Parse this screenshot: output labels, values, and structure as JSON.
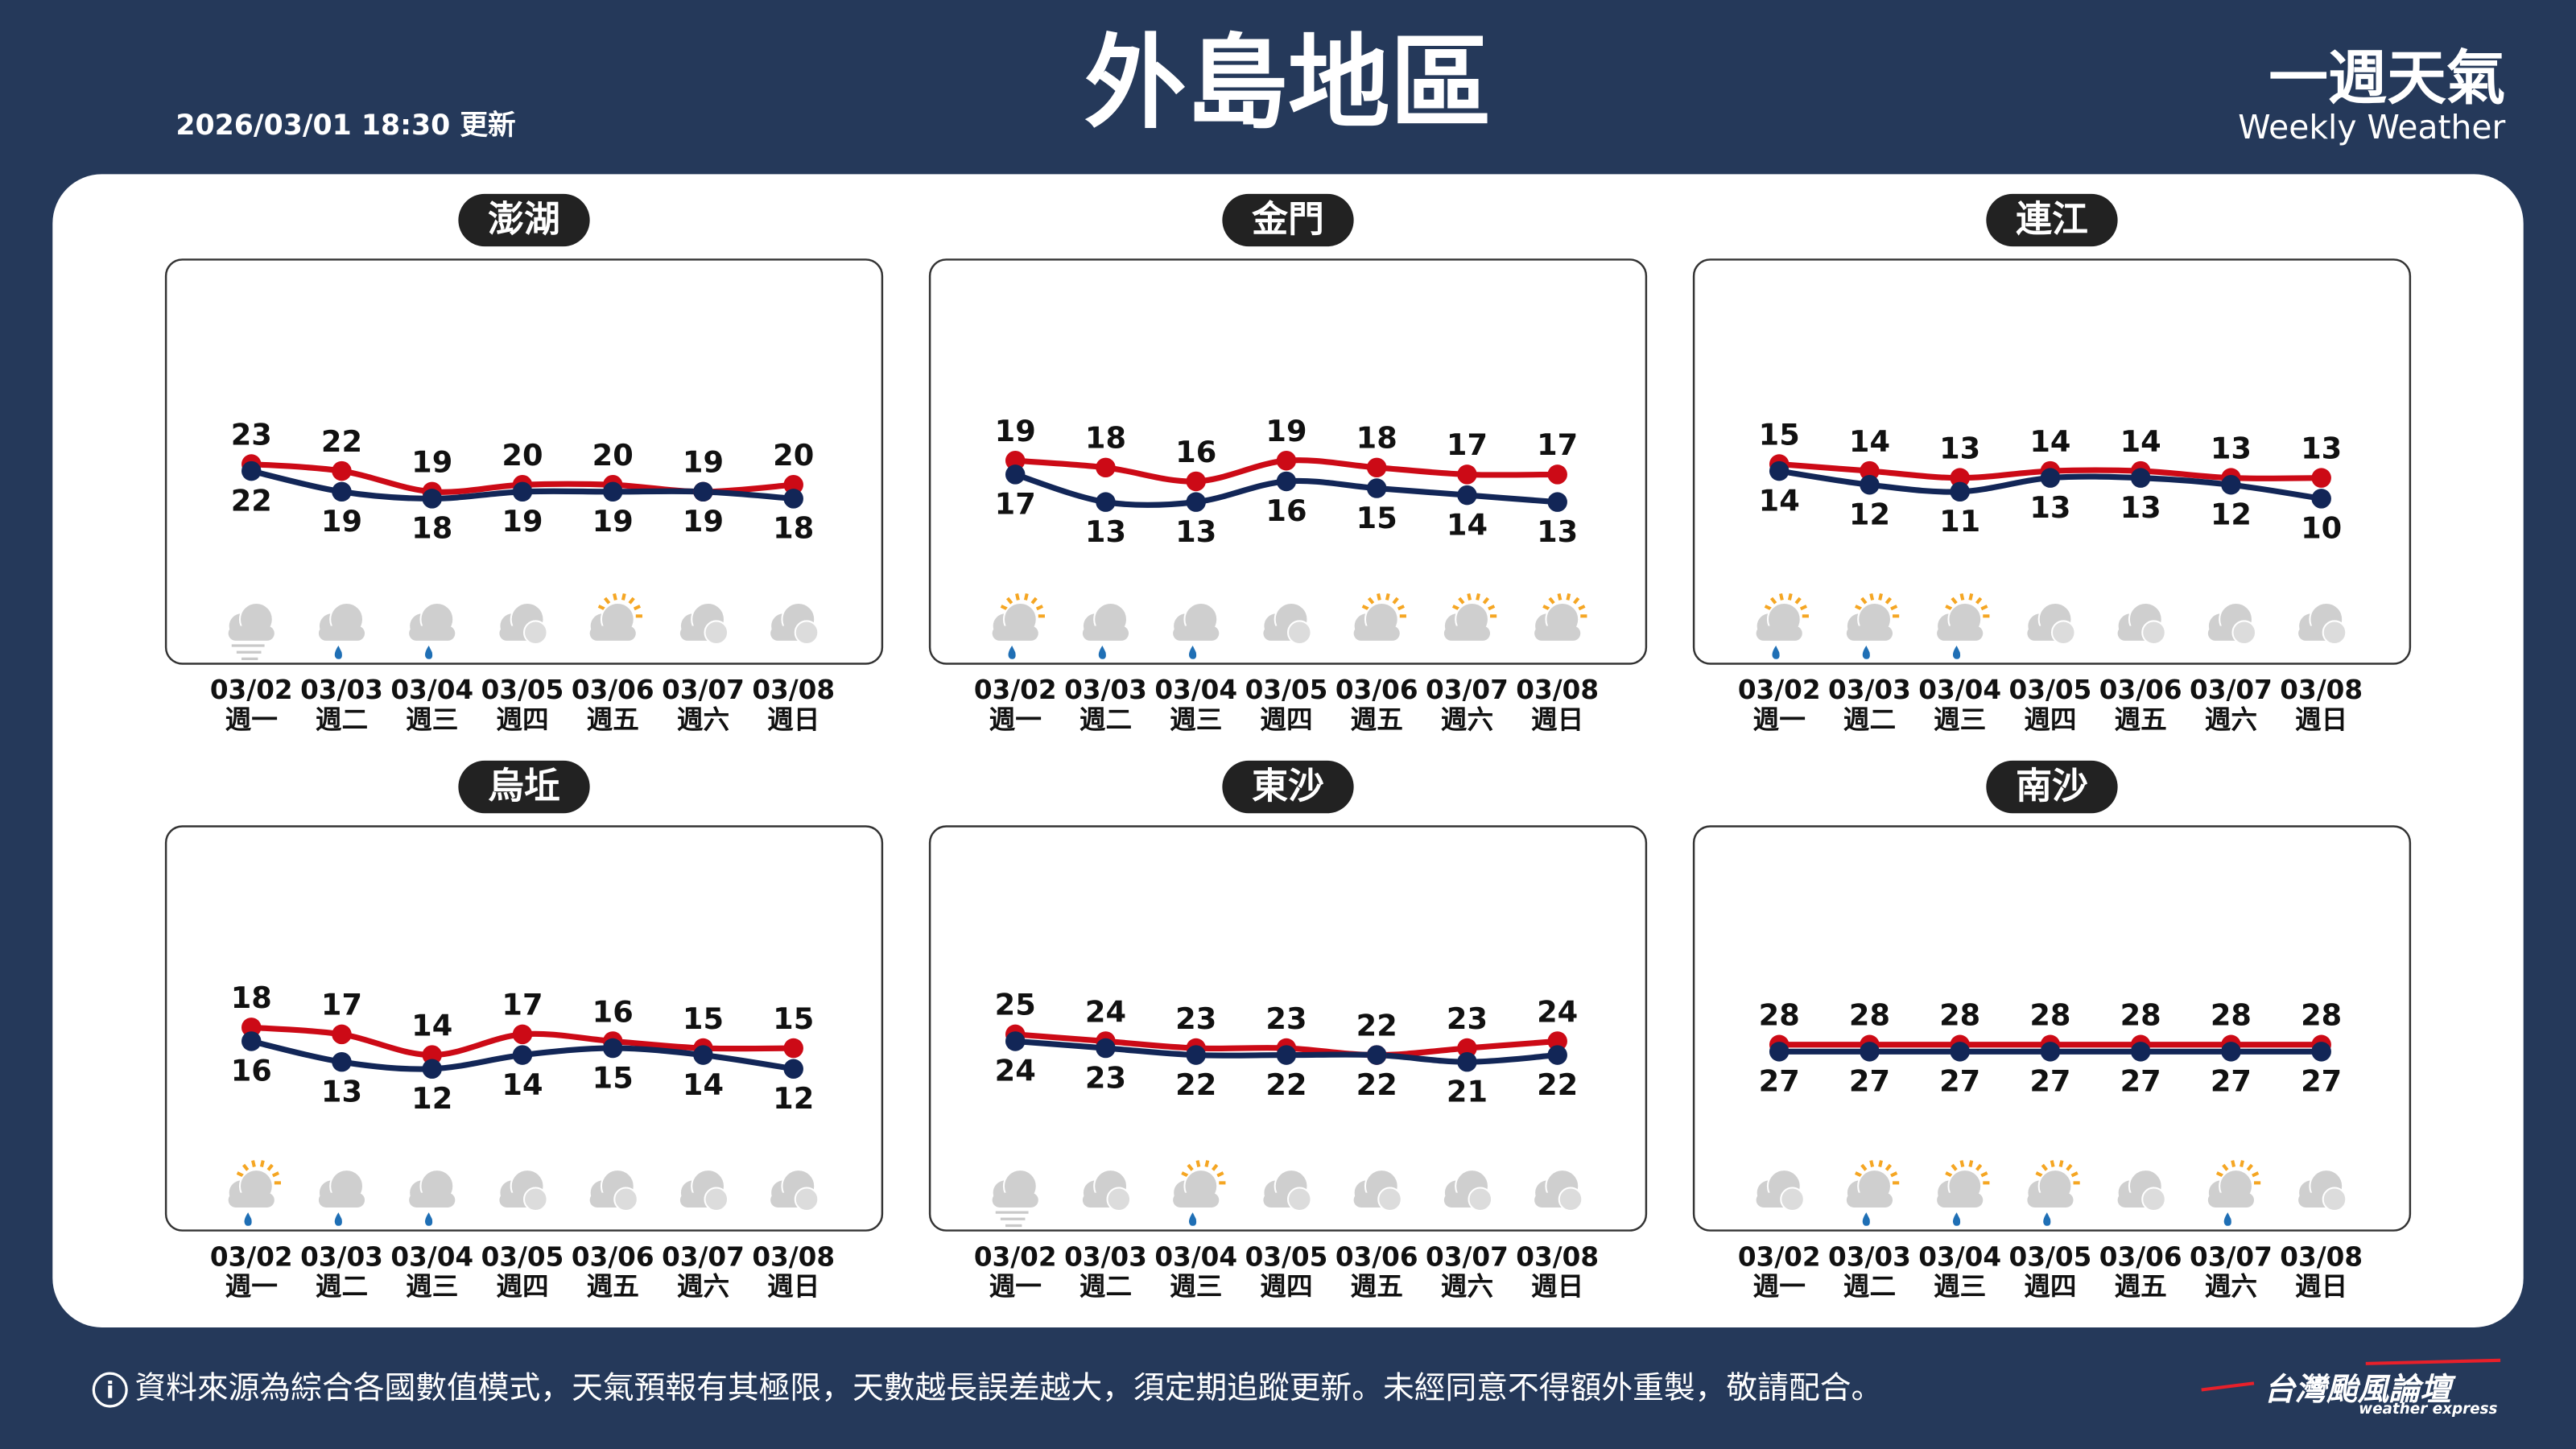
{
  "header": {
    "title": "外島地區",
    "updated": "2026/03/01 18:30 更新",
    "brand_title": "一週天氣",
    "brand_subtitle": "Weekly Weather"
  },
  "footer": {
    "note": "資料來源為綜合各國數值模式，天氣預報有其極限，天數越長誤差越大，須定期追蹤更新。未經同意不得額外重製，敬請配合。",
    "logo": "台灣颱風論壇",
    "logo_sub": "weather express"
  },
  "chart_data": [
    {
      "type": "line",
      "title": "澎湖",
      "categories": [
        "03/02",
        "03/03",
        "03/04",
        "03/05",
        "03/06",
        "03/07",
        "03/08"
      ],
      "weekdays": [
        "週一",
        "週二",
        "週三",
        "週四",
        "週五",
        "週六",
        "週日"
      ],
      "series": [
        {
          "color": "#cc0a16",
          "values": [
            23,
            22,
            19,
            20,
            20,
            19,
            20
          ]
        },
        {
          "color": "#122657",
          "values": [
            22,
            19,
            18,
            19,
            19,
            19,
            18
          ]
        }
      ]
    },
    {
      "type": "line",
      "title": "金門",
      "categories": [
        "03/02",
        "03/03",
        "03/04",
        "03/05",
        "03/06",
        "03/07",
        "03/08"
      ],
      "weekdays": [
        "週一",
        "週二",
        "週三",
        "週四",
        "週五",
        "週六",
        "週日"
      ],
      "series": [
        {
          "color": "#cc0a16",
          "values": [
            19,
            18,
            16,
            19,
            18,
            17,
            17
          ]
        },
        {
          "color": "#122657",
          "values": [
            17,
            13,
            13,
            16,
            15,
            14,
            13
          ]
        }
      ]
    },
    {
      "type": "line",
      "title": "連江",
      "categories": [
        "03/02",
        "03/03",
        "03/04",
        "03/05",
        "03/06",
        "03/07",
        "03/08"
      ],
      "weekdays": [
        "週一",
        "週二",
        "週三",
        "週四",
        "週五",
        "週六",
        "週日"
      ],
      "series": [
        {
          "color": "#cc0a16",
          "values": [
            15,
            14,
            13,
            14,
            14,
            13,
            13
          ]
        },
        {
          "color": "#122657",
          "values": [
            14,
            12,
            11,
            13,
            13,
            12,
            10
          ]
        }
      ]
    },
    {
      "type": "line",
      "title": "烏坵",
      "categories": [
        "03/02",
        "03/03",
        "03/04",
        "03/05",
        "03/06",
        "03/07",
        "03/08"
      ],
      "weekdays": [
        "週一",
        "週二",
        "週三",
        "週四",
        "週五",
        "週六",
        "週日"
      ],
      "series": [
        {
          "color": "#cc0a16",
          "values": [
            18,
            17,
            14,
            17,
            16,
            15,
            15
          ]
        },
        {
          "color": "#122657",
          "values": [
            16,
            13,
            12,
            14,
            15,
            14,
            12
          ]
        }
      ]
    },
    {
      "type": "line",
      "title": "東沙",
      "categories": [
        "03/02",
        "03/03",
        "03/04",
        "03/05",
        "03/06",
        "03/07",
        "03/08"
      ],
      "weekdays": [
        "週一",
        "週二",
        "週三",
        "週四",
        "週五",
        "週六",
        "週日"
      ],
      "series": [
        {
          "color": "#cc0a16",
          "values": [
            25,
            24,
            23,
            23,
            22,
            23,
            24
          ]
        },
        {
          "color": "#122657",
          "values": [
            24,
            23,
            22,
            22,
            22,
            21,
            22
          ]
        }
      ]
    },
    {
      "type": "line",
      "title": "南沙",
      "categories": [
        "03/02",
        "03/03",
        "03/04",
        "03/05",
        "03/06",
        "03/07",
        "03/08"
      ],
      "weekdays": [
        "週一",
        "週二",
        "週三",
        "週四",
        "週五",
        "週六",
        "週日"
      ],
      "series": [
        {
          "color": "#cc0a16",
          "values": [
            28,
            28,
            28,
            28,
            28,
            28,
            28
          ]
        },
        {
          "color": "#122657",
          "values": [
            27,
            27,
            27,
            27,
            27,
            27,
            27
          ]
        }
      ]
    }
  ]
}
